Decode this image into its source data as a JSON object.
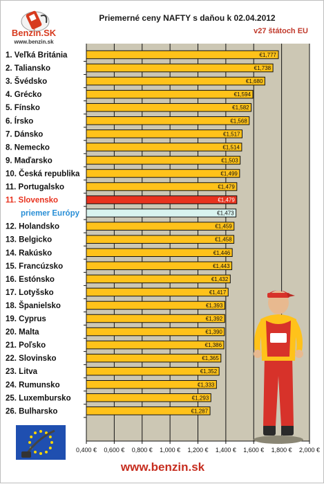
{
  "logo": {
    "brand": "Benzin.SK",
    "url": "www.benzin.sk"
  },
  "header": {
    "title": "Priemerné ceny NAFTY s daňou k 02.04.2012",
    "subtitle": "v27 štátoch EU"
  },
  "footer": {
    "url": "www.benzin.sk"
  },
  "colors": {
    "bar": "#ffc21a",
    "highlight": "#e8321e",
    "average": "#d9f3ef",
    "plot_bg": "#ccc7b4",
    "label_red": "#e8321e",
    "label_blue": "#2a8fd6"
  },
  "icons": {
    "logo": "fuel-pump-logo-icon",
    "flag": "eu-flag-icon",
    "mascot": "mechanic-mascot-icon"
  },
  "chart_data": {
    "type": "bar",
    "orientation": "horizontal",
    "categories": [
      "1. Veľká Británia",
      "2. Taliansko",
      "3. Švédsko",
      "4. Grécko",
      "5. Fínsko",
      "6. Írsko",
      "7. Dánsko",
      "8. Nemecko",
      "9. Maďarsko",
      "10. Česká republika",
      "11. Portugalsko",
      "11. Slovensko",
      "priemer Európy",
      "12. Holandsko",
      "13. Belgicko",
      "14. Rakúsko",
      "15. Francúzsko",
      "16. Estónsko",
      "17. Lotyšsko",
      "18. Španielsko",
      "19. Cyprus",
      "20. Malta",
      "21. Poľsko",
      "22. Slovinsko",
      "23. Litva",
      "24. Rumunsko",
      "25. Luxembursko",
      "26. Bulharsko"
    ],
    "values": [
      1.777,
      1.738,
      1.68,
      1.594,
      1.582,
      1.568,
      1.517,
      1.514,
      1.503,
      1.499,
      1.479,
      1.479,
      1.473,
      1.459,
      1.458,
      1.446,
      1.443,
      1.432,
      1.417,
      1.393,
      1.392,
      1.39,
      1.386,
      1.365,
      1.352,
      1.333,
      1.293,
      1.287
    ],
    "value_labels": [
      "€1,777",
      "€1,738",
      "€1,680",
      "€1,594",
      "€1,582",
      "€1,568",
      "€1,517",
      "€1,514",
      "€1,503",
      "€1,499",
      "€1,479",
      "€1,479",
      "€1,473",
      "€1,459",
      "€1,458",
      "€1,446",
      "€1,443",
      "€1,432",
      "€1,417",
      "€1,393",
      "€1,392",
      "€1,390",
      "€1,386",
      "€1,365",
      "€1,352",
      "€1,333",
      "€1,293",
      "€1,287"
    ],
    "highlight_category": "11. Slovensko",
    "average_category": "priemer Európy",
    "xlim": [
      0.4,
      2.0
    ],
    "xticks": [
      0.4,
      0.6,
      0.8,
      1.0,
      1.2,
      1.4,
      1.6,
      1.8,
      2.0
    ],
    "xtick_labels": [
      "0,400 €",
      "0,600 €",
      "0,800 €",
      "1,000 €",
      "1,200 €",
      "1,400 €",
      "1,600 €",
      "1,800 €",
      "2,000 €"
    ],
    "grid": true
  }
}
